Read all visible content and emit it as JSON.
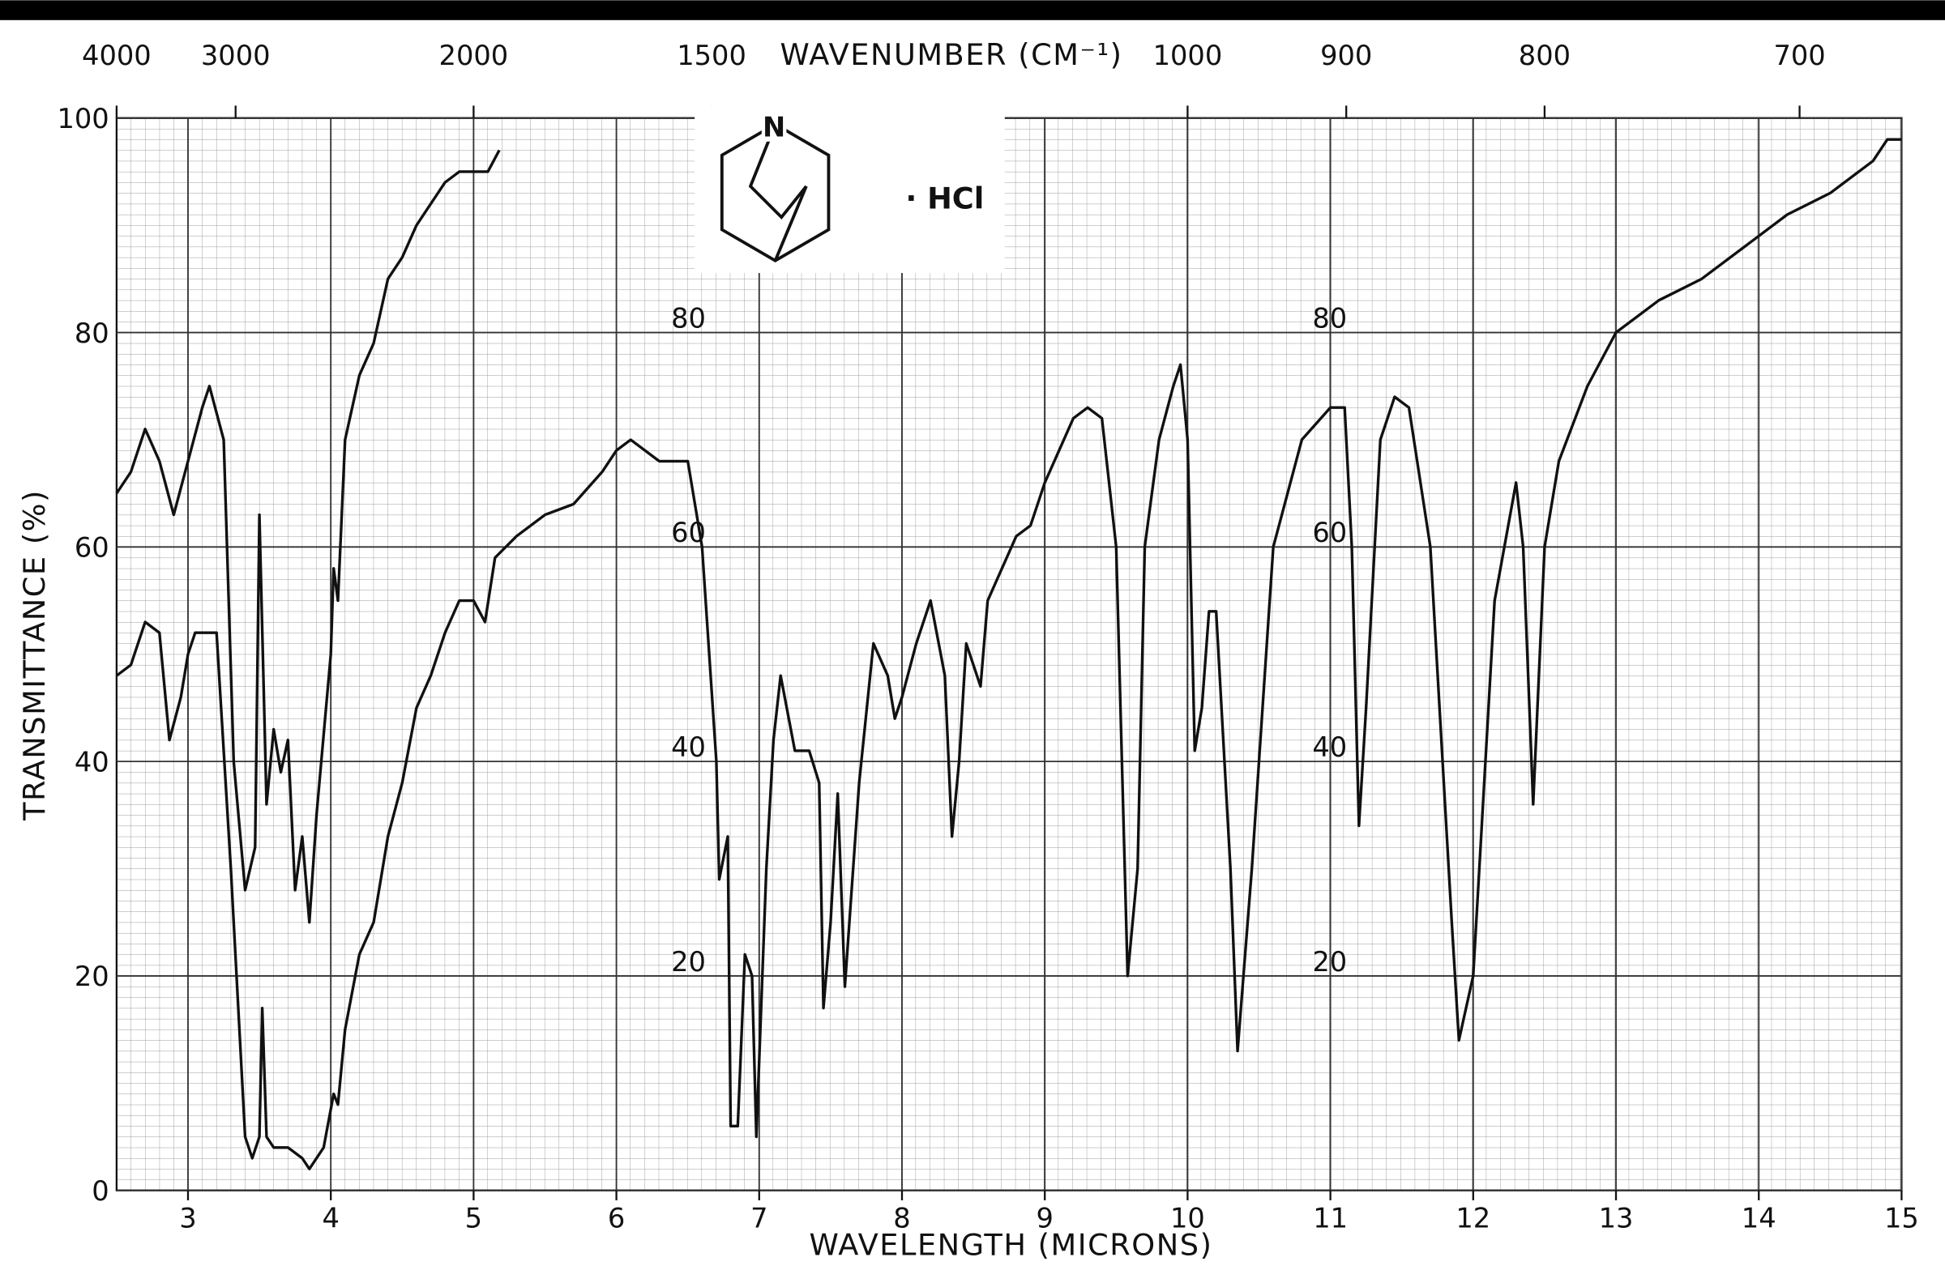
{
  "chart_data": {
    "type": "line",
    "x_label": "WAVELENGTH (MICRONS)",
    "y_label": "TRANSMITTANCE (%)",
    "annotation": "· HCl",
    "xlim": [
      2.5,
      15
    ],
    "ylim": [
      0,
      100
    ],
    "xticks": [
      3,
      4,
      5,
      6,
      7,
      8,
      9,
      10,
      11,
      12,
      13,
      14,
      15
    ],
    "yticks": [
      0,
      20,
      40,
      60,
      80,
      100
    ],
    "inner_yticks": [
      20,
      40,
      60,
      80
    ],
    "top_axis": {
      "label": "WAVENUMBER (CM⁻¹)",
      "ticks": [
        4000,
        3000,
        2000,
        1500,
        1000,
        900,
        800,
        700
      ]
    },
    "grid": true,
    "series": [
      {
        "color": "#111111",
        "x": [
          2.5,
          2.6,
          2.7,
          2.8,
          2.9,
          3.0,
          3.1,
          3.15,
          3.25,
          3.32,
          3.4,
          3.47,
          3.5,
          3.55,
          3.6,
          3.65,
          3.7,
          3.75,
          3.8,
          3.85,
          3.9,
          4.0,
          4.02,
          4.05,
          4.1,
          4.2,
          4.3,
          4.4,
          4.5,
          4.6,
          4.7,
          4.8,
          4.9,
          5.0,
          5.1,
          5.18
        ],
        "values": [
          65,
          67,
          71,
          68,
          63,
          68,
          73,
          75,
          70,
          40,
          28,
          32,
          63,
          36,
          43,
          39,
          42,
          28,
          33,
          25,
          35,
          50,
          58,
          55,
          70,
          76,
          79,
          85,
          87,
          90,
          92,
          94,
          95,
          95,
          95,
          97
        ]
      },
      {
        "color": "#111111",
        "x": [
          2.5,
          2.6,
          2.7,
          2.8,
          2.87,
          2.95,
          3.0,
          3.05,
          3.2,
          3.3,
          3.4,
          3.45,
          3.5,
          3.52,
          3.55,
          3.6,
          3.7,
          3.8,
          3.85,
          3.95,
          4.02,
          4.05,
          4.1,
          4.2,
          4.3,
          4.4,
          4.5,
          4.6,
          4.7,
          4.8,
          4.9,
          5.0,
          5.08,
          5.15,
          5.3,
          5.5,
          5.7,
          5.9,
          6.0,
          6.1,
          6.3,
          6.5,
          6.6,
          6.7,
          6.72,
          6.78,
          6.8,
          6.85,
          6.9,
          6.95,
          6.98,
          7.05,
          7.1,
          7.15,
          7.25,
          7.35,
          7.42,
          7.45,
          7.5,
          7.55,
          7.6,
          7.7,
          7.8,
          7.9,
          7.95,
          8.0,
          8.1,
          8.2,
          8.3,
          8.35,
          8.4,
          8.45,
          8.55,
          8.6,
          8.7,
          8.8,
          8.9,
          9.0,
          9.1,
          9.2,
          9.3,
          9.4,
          9.5,
          9.58,
          9.65,
          9.7,
          9.8,
          9.9,
          9.95,
          10.0,
          10.05,
          10.1,
          10.15,
          10.2,
          10.3,
          10.35,
          10.45,
          10.6,
          10.8,
          11.0,
          11.1,
          11.15,
          11.2,
          11.25,
          11.35,
          11.45,
          11.55,
          11.7,
          11.85,
          11.9,
          12.0,
          12.15,
          12.3,
          12.35,
          12.42,
          12.5,
          12.6,
          12.8,
          13.0,
          13.3,
          13.6,
          13.9,
          14.2,
          14.5,
          14.8,
          14.9,
          15.0
        ],
        "values": [
          48,
          49,
          53,
          52,
          42,
          46,
          50,
          52,
          52,
          30,
          5,
          3,
          5,
          17,
          5,
          4,
          4,
          3,
          2,
          4,
          9,
          8,
          15,
          22,
          25,
          33,
          38,
          45,
          48,
          52,
          55,
          55,
          53,
          59,
          61,
          63,
          64,
          67,
          69,
          70,
          68,
          68,
          60,
          40,
          29,
          33,
          6,
          6,
          22,
          20,
          5,
          30,
          42,
          48,
          41,
          41,
          38,
          17,
          25,
          37,
          19,
          38,
          51,
          48,
          44,
          46,
          51,
          55,
          48,
          33,
          40,
          51,
          47,
          55,
          58,
          61,
          62,
          66,
          69,
          72,
          73,
          72,
          60,
          20,
          30,
          60,
          70,
          75,
          77,
          70,
          41,
          45,
          54,
          54,
          30,
          13,
          30,
          60,
          70,
          73,
          73,
          60,
          34,
          45,
          70,
          74,
          73,
          60,
          25,
          14,
          20,
          55,
          66,
          60,
          36,
          60,
          68,
          75,
          80,
          83,
          85,
          88,
          91,
          93,
          96,
          98,
          98
        ]
      }
    ]
  }
}
